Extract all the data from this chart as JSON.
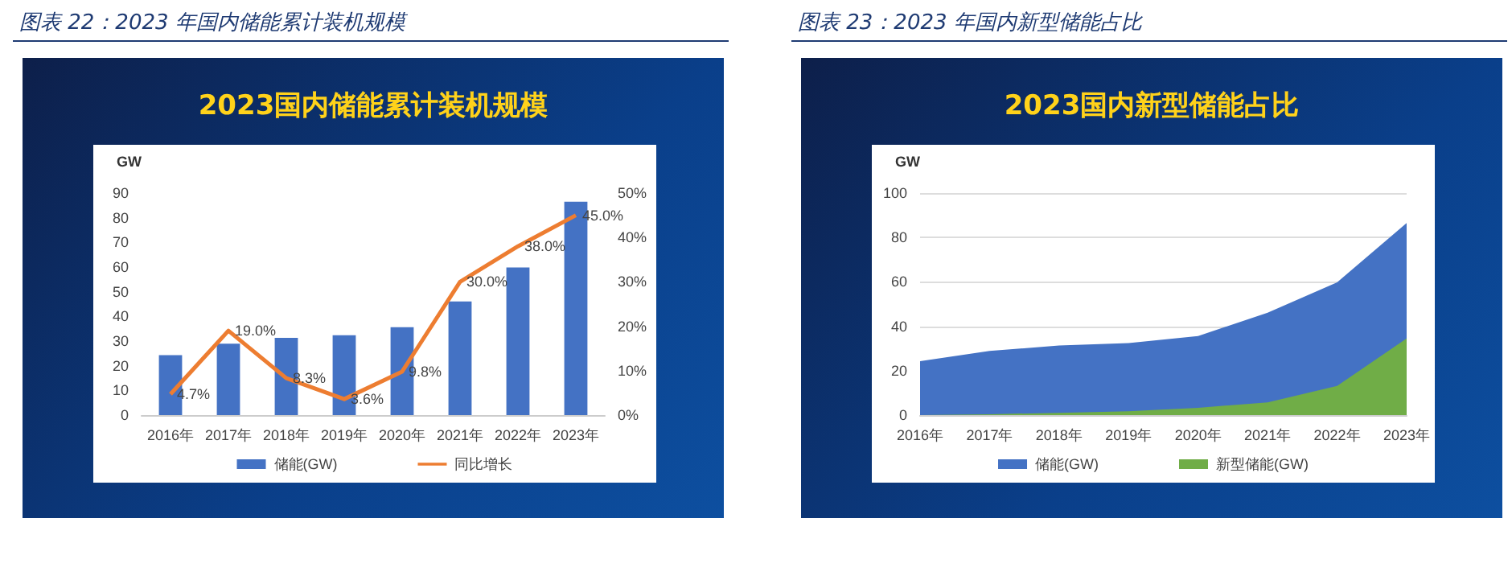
{
  "chart_data": [
    {
      "type": "bar",
      "title": "图表 22：2023 年国内储能累计装机规模",
      "subtitle": "2023国内储能累计装机规模",
      "ylabel": "GW",
      "categories": [
        "2016年",
        "2017年",
        "2018年",
        "2019年",
        "2020年",
        "2021年",
        "2022年",
        "2023年"
      ],
      "series": [
        {
          "name": "储能(GW)",
          "color": "#4472c4",
          "values": [
            24.3,
            28.9,
            31.3,
            32.4,
            35.6,
            46.1,
            59.8,
            86.5
          ]
        },
        {
          "name": "同比增长",
          "type": "line",
          "axis": "y2",
          "color": "#ed7d31",
          "values": [
            4.7,
            19.0,
            8.3,
            3.6,
            9.8,
            30.0,
            38.0,
            45.0
          ],
          "value_labels": [
            "4.7%",
            "19.0%",
            "8.3%",
            "3.6%",
            "9.8%",
            "30.0%",
            "38.0%",
            "45.0%"
          ]
        }
      ],
      "ylim": [
        0,
        90
      ],
      "yticks": [
        0,
        10,
        20,
        30,
        40,
        50,
        60,
        70,
        80,
        90
      ],
      "y2lim": [
        0,
        50
      ],
      "y2ticks": [
        {
          "value": 0,
          "label": "0%"
        },
        {
          "value": 10,
          "label": "10%"
        },
        {
          "value": 20,
          "label": "20%"
        },
        {
          "value": 30,
          "label": "30%"
        },
        {
          "value": 40,
          "label": "40%"
        },
        {
          "value": 50,
          "label": "50%"
        }
      ],
      "legend": "bottom",
      "marker": "none"
    },
    {
      "type": "area",
      "title": "图表 23：2023 年国内新型储能占比",
      "subtitle": "2023国内新型储能占比",
      "ylabel": "GW",
      "categories": [
        "2016年",
        "2017年",
        "2018年",
        "2019年",
        "2020年",
        "2021年",
        "2022年",
        "2023年"
      ],
      "series": [
        {
          "name": "储能(GW)",
          "color": "#4472c4",
          "values": [
            24.3,
            28.9,
            31.3,
            32.4,
            35.6,
            46.1,
            59.8,
            86.5
          ]
        },
        {
          "name": "新型储能(GW)",
          "color": "#70ad47",
          "values": [
            0.0,
            0.4,
            1.0,
            1.7,
            3.3,
            5.7,
            13.1,
            34.5
          ]
        }
      ],
      "ylim": [
        0,
        100
      ],
      "yticks": [
        0,
        20,
        40,
        60,
        80,
        100
      ],
      "grid": "y",
      "legend": "bottom",
      "marker": "none"
    }
  ]
}
